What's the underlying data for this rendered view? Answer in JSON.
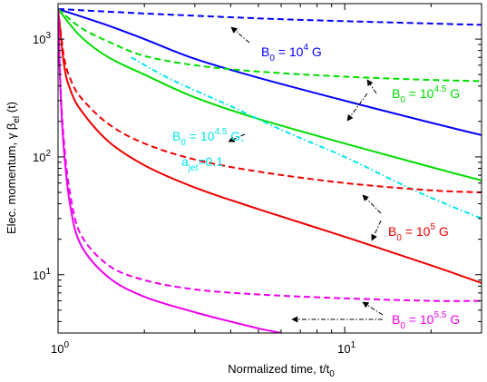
{
  "chart_data": {
    "type": "line",
    "xlabel": {
      "main": "Normalized time, t/t",
      "sub": "0"
    },
    "ylabel": {
      "pre": "Elec. momentum, γ β",
      "sub": "el",
      "post": " (t)"
    },
    "x_scale": "log",
    "y_scale": "log",
    "xlim": [
      1,
      30
    ],
    "ylim": [
      3.2,
      2000
    ],
    "x_ticks": [
      {
        "value": 1,
        "base": "10",
        "exp": "0"
      },
      {
        "value": 10,
        "base": "10",
        "exp": "1"
      }
    ],
    "y_ticks": [
      {
        "value": 10,
        "base": "10",
        "exp": "1"
      },
      {
        "value": 100,
        "base": "10",
        "exp": "2"
      },
      {
        "value": 1000,
        "base": "10",
        "exp": "3"
      }
    ],
    "grid": false,
    "series": [
      {
        "color": "#0000ff",
        "dash": "dashed",
        "x": [
          1,
          2,
          5,
          10,
          30
        ],
        "y": [
          1800,
          1650,
          1500,
          1420,
          1320
        ]
      },
      {
        "color": "#0000ff",
        "dash": "solid",
        "x": [
          1,
          1.5,
          2,
          3,
          5,
          10,
          20,
          30
        ],
        "y": [
          1800,
          1300,
          1000,
          680,
          470,
          300,
          195,
          153
        ]
      },
      {
        "color": "#00dd00",
        "dash": "dashed",
        "x": [
          1,
          1.2,
          1.5,
          2,
          3,
          5,
          10,
          20,
          30
        ],
        "y": [
          1800,
          1250,
          950,
          720,
          600,
          530,
          480,
          450,
          440
        ]
      },
      {
        "color": "#00dd00",
        "dash": "solid",
        "x": [
          1,
          1.2,
          1.5,
          2,
          3,
          5,
          10,
          20,
          30
        ],
        "y": [
          1800,
          1050,
          700,
          500,
          320,
          210,
          130,
          82,
          63
        ]
      },
      {
        "color": "#00e5ee",
        "dash": "dashdot",
        "x": [
          1.8,
          2.5,
          4,
          6,
          10,
          15,
          20,
          30
        ],
        "y": [
          700,
          450,
          270,
          170,
          100,
          62,
          45,
          30
        ]
      },
      {
        "color": "#ee0000",
        "dash": "dashed",
        "x": [
          1,
          1.05,
          1.1,
          1.2,
          1.5,
          2,
          3,
          5,
          10,
          20,
          30
        ],
        "y": [
          1800,
          700,
          470,
          320,
          190,
          130,
          95,
          75,
          60,
          52,
          50
        ]
      },
      {
        "color": "#ee0000",
        "dash": "solid",
        "x": [
          1,
          1.05,
          1.1,
          1.2,
          1.5,
          2,
          3,
          5,
          10,
          20,
          30
        ],
        "y": [
          1800,
          600,
          380,
          250,
          135,
          85,
          55,
          36,
          21,
          12,
          8.5
        ]
      },
      {
        "color": "#ee00ee",
        "dash": "dashed",
        "x": [
          1,
          1.02,
          1.05,
          1.1,
          1.2,
          1.5,
          2,
          3,
          5,
          10,
          20,
          30
        ],
        "y": [
          1800,
          400,
          130,
          50,
          22,
          12,
          9,
          7.5,
          6.8,
          6.3,
          6.0,
          6.0
        ]
      },
      {
        "color": "#ee00ee",
        "dash": "solid",
        "x": [
          1,
          1.02,
          1.05,
          1.1,
          1.2,
          1.5,
          2,
          3,
          4,
          5,
          6
        ],
        "y": [
          1800,
          360,
          110,
          40,
          18,
          9.5,
          6.5,
          4.8,
          4.0,
          3.5,
          3.2
        ]
      }
    ],
    "annotations": [
      {
        "base": "B",
        "sub": "0",
        "mid": " = 10",
        "sup": "4",
        "tail": " G",
        "color": "#0000ff"
      },
      {
        "base": "B",
        "sub": "0",
        "mid": " = 10",
        "sup": "4.5",
        "tail": " G",
        "color": "#00dd00"
      },
      {
        "base": "B",
        "sub": "0",
        "mid": " = 10",
        "sup": "4.5",
        "tail": " G;",
        "color": "#00e5ee"
      },
      {
        "base": "a",
        "sub": "jet",
        "mid": "=0.1",
        "sup": "",
        "tail": "",
        "color": "#00e5ee"
      },
      {
        "base": "B",
        "sub": "0",
        "mid": " = 10",
        "sup": "5",
        "tail": " G",
        "color": "#ee0000"
      },
      {
        "base": "B",
        "sub": "0",
        "mid": " = 10",
        "sup": "5.5",
        "tail": " G",
        "color": "#ee00ee"
      }
    ]
  }
}
